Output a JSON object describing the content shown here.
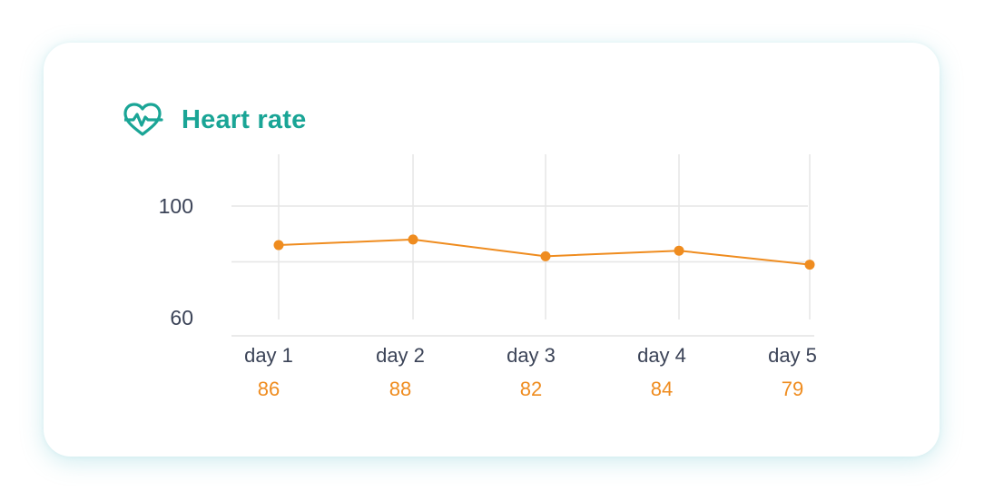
{
  "card": {
    "title": "Heart rate",
    "icon": "heart-pulse-icon"
  },
  "colors": {
    "title": "#1aa596",
    "line": "#ef8c1f",
    "grid": "#e6e6e6",
    "text": "#3b4357"
  },
  "chart_data": {
    "type": "line",
    "title": "Heart rate",
    "categories": [
      "day 1",
      "day 2",
      "day 3",
      "day 4",
      "day 5"
    ],
    "series": [
      {
        "values": [
          86,
          88,
          82,
          84,
          79
        ]
      }
    ],
    "data_labels": [
      "86",
      "88",
      "82",
      "84",
      "79"
    ],
    "y_ticks": [
      60,
      100
    ],
    "y_tick_labels": [
      "60",
      "100"
    ],
    "ylim": [
      54,
      111
    ],
    "grid": true,
    "legend": "none"
  }
}
